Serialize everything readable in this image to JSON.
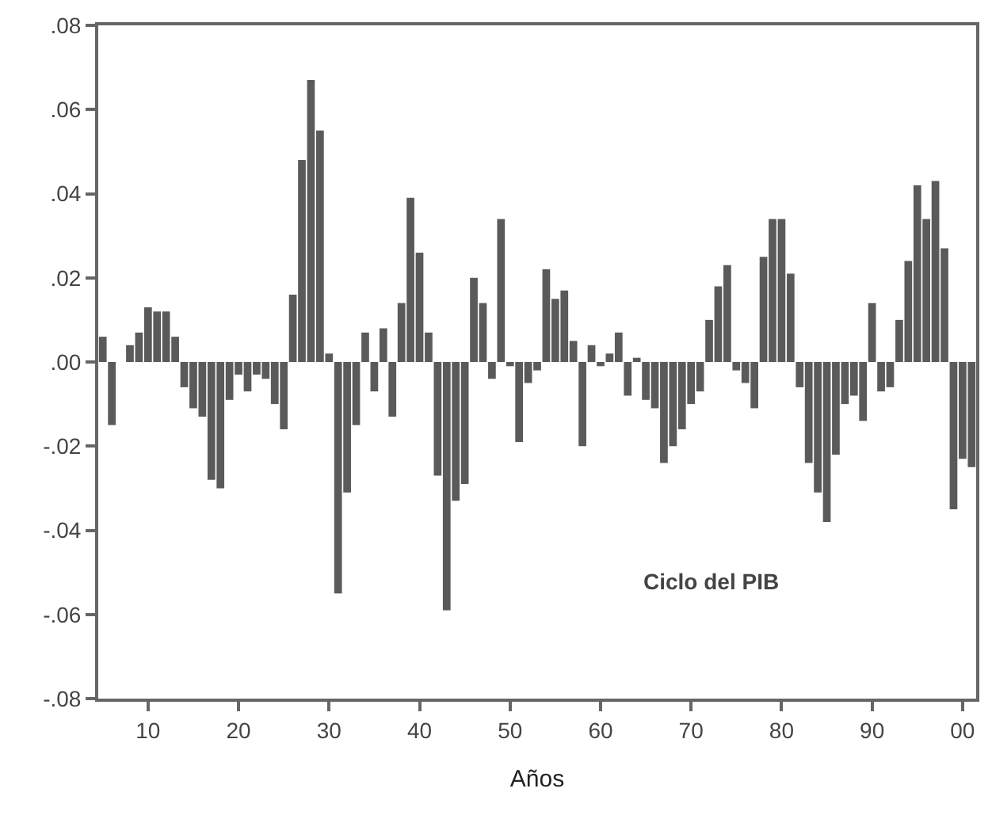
{
  "chart_data": {
    "type": "bar",
    "xlabel": "Años",
    "color": "#5a5a5a",
    "x": [
      1905,
      1906,
      1907,
      1908,
      1909,
      1910,
      1911,
      1912,
      1913,
      1914,
      1915,
      1916,
      1917,
      1918,
      1919,
      1920,
      1921,
      1922,
      1923,
      1924,
      1925,
      1926,
      1927,
      1928,
      1929,
      1930,
      1931,
      1932,
      1933,
      1934,
      1935,
      1936,
      1937,
      1938,
      1939,
      1940,
      1941,
      1942,
      1943,
      1944,
      1945,
      1946,
      1947,
      1948,
      1949,
      1950,
      1951,
      1952,
      1953,
      1954,
      1955,
      1956,
      1957,
      1958,
      1959,
      1960,
      1961,
      1962,
      1963,
      1964,
      1965,
      1966,
      1967,
      1968,
      1969,
      1970,
      1971,
      1972,
      1973,
      1974,
      1975,
      1976,
      1977,
      1978,
      1979,
      1980,
      1981,
      1982,
      1983,
      1984,
      1985,
      1986,
      1987,
      1988,
      1989,
      1990,
      1991,
      1992,
      1993,
      1994,
      1995,
      1996,
      1997,
      1998,
      1999,
      2000,
      2001
    ],
    "values": [
      0.006,
      -0.015,
      null,
      0.004,
      0.007,
      0.013,
      0.012,
      0.012,
      0.006,
      -0.006,
      -0.011,
      -0.013,
      -0.028,
      -0.03,
      -0.009,
      -0.003,
      -0.007,
      -0.003,
      -0.004,
      -0.01,
      -0.016,
      0.016,
      0.048,
      0.067,
      0.055,
      0.002,
      -0.055,
      -0.031,
      -0.015,
      0.007,
      -0.007,
      0.008,
      -0.013,
      0.014,
      0.039,
      0.026,
      0.007,
      -0.027,
      -0.059,
      -0.033,
      -0.029,
      0.02,
      0.014,
      -0.004,
      0.034,
      -0.001,
      -0.019,
      -0.005,
      -0.002,
      0.022,
      0.015,
      0.017,
      0.005,
      -0.02,
      0.004,
      -0.001,
      0.002,
      0.007,
      -0.008,
      0.001,
      -0.009,
      -0.011,
      -0.024,
      -0.02,
      -0.016,
      -0.01,
      -0.007,
      0.01,
      0.018,
      0.023,
      -0.002,
      -0.005,
      -0.011,
      0.025,
      0.034,
      0.034,
      0.021,
      -0.006,
      -0.024,
      -0.031,
      -0.038,
      -0.022,
      -0.01,
      -0.008,
      -0.014,
      0.014,
      -0.007,
      -0.006,
      0.01,
      0.024,
      0.042,
      0.034,
      0.043,
      0.027,
      -0.035,
      -0.023,
      -0.025
    ],
    "xlim": [
      1904.5,
      2001.5
    ],
    "xticks": [
      {
        "value": 1910,
        "label": "10"
      },
      {
        "value": 1920,
        "label": "20"
      },
      {
        "value": 1930,
        "label": "30"
      },
      {
        "value": 1940,
        "label": "40"
      },
      {
        "value": 1950,
        "label": "50"
      },
      {
        "value": 1960,
        "label": "60"
      },
      {
        "value": 1970,
        "label": "70"
      },
      {
        "value": 1980,
        "label": "80"
      },
      {
        "value": 1990,
        "label": "90"
      },
      {
        "value": 2000,
        "label": "00"
      }
    ],
    "ylim": [
      -0.08,
      0.08
    ],
    "yticks": [
      {
        "value": 0.08,
        "label": ".08"
      },
      {
        "value": 0.06,
        "label": ".06"
      },
      {
        "value": 0.04,
        "label": ".04"
      },
      {
        "value": 0.02,
        "label": ".02"
      },
      {
        "value": 0,
        "label": ".00"
      },
      {
        "value": -0.02,
        "label": "-.02"
      },
      {
        "value": -0.04,
        "label": "-.04"
      },
      {
        "value": -0.06,
        "label": "-.06"
      },
      {
        "value": -0.08,
        "label": "-.08"
      }
    ],
    "annotations": [
      "Ciclo del PIB"
    ]
  }
}
